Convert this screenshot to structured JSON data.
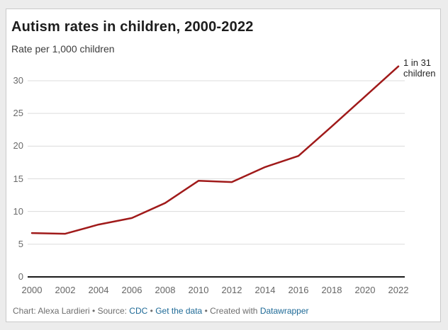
{
  "header": {
    "title": "Autism rates in children, 2000-2022",
    "subtitle": "Rate per 1,000 children"
  },
  "chart_data": {
    "type": "line",
    "title": "Autism rates in children, 2000-2022",
    "subtitle": "Rate per 1,000 children",
    "xlabel": "",
    "ylabel": "Rate per 1,000 children",
    "x": [
      2000,
      2002,
      2004,
      2006,
      2008,
      2010,
      2012,
      2014,
      2016,
      2018,
      2020,
      2022
    ],
    "x_tick_labels": [
      "2000",
      "2002",
      "2004",
      "2006",
      "2008",
      "2010",
      "2012",
      "2014",
      "2016",
      "2018",
      "2020",
      "2022"
    ],
    "series": [
      {
        "name": "Autism rate per 1,000 children",
        "values": [
          6.7,
          6.6,
          8.0,
          9.0,
          11.3,
          14.7,
          14.5,
          16.8,
          18.5,
          23.0,
          27.6,
          32.2
        ]
      }
    ],
    "ylim": [
      0,
      32.5
    ],
    "y_ticks": [
      0,
      5,
      10,
      15,
      20,
      25,
      30
    ],
    "grid": "horizontal-only",
    "legend": "none",
    "line_color": "#a01a1a",
    "grid_color": "#dcdcdc",
    "axis_color": "#1a1a1a",
    "annotation": {
      "line1": "1 in 31",
      "line2": "children"
    }
  },
  "footer": {
    "byline": "Chart: Alexa Lardieri • Source:",
    "link_cdc": "CDC",
    "sep1": "•",
    "link_data": "Get the data",
    "created_with": "• Created with",
    "link_datawrapper": "Datawrapper"
  }
}
